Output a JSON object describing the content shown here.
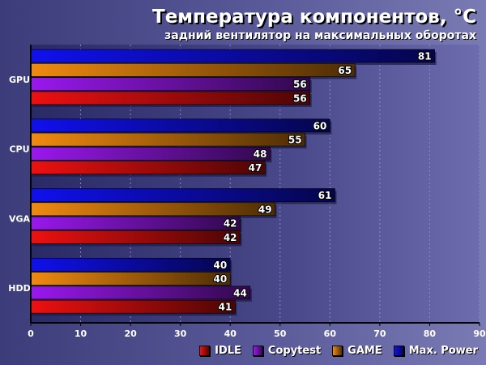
{
  "chart_data": {
    "type": "bar",
    "orientation": "horizontal",
    "title": "Температура компонентов, °C",
    "subtitle": "задний вентилятор на максимальных оборотах",
    "categories": [
      "GPU",
      "CPU",
      "VGA",
      "HDD"
    ],
    "series": [
      {
        "name": "Max. Power",
        "color": "#1010ee",
        "values": [
          81,
          60,
          61,
          40
        ]
      },
      {
        "name": "GAME",
        "color": "#f08a10",
        "values": [
          65,
          55,
          49,
          40
        ]
      },
      {
        "name": "Copytest",
        "color": "#9a18ee",
        "values": [
          56,
          48,
          42,
          44
        ]
      },
      {
        "name": "IDLE",
        "color": "#ee1010",
        "values": [
          56,
          47,
          42,
          41
        ]
      }
    ],
    "xlim": [
      0,
      90
    ],
    "xticks": [
      "0",
      "10",
      "20",
      "30",
      "40",
      "50",
      "60",
      "70",
      "80",
      "90"
    ],
    "legend_order": [
      "IDLE",
      "Copytest",
      "GAME",
      "Max. Power"
    ],
    "grid": true,
    "legend_position": "bottom-right"
  }
}
